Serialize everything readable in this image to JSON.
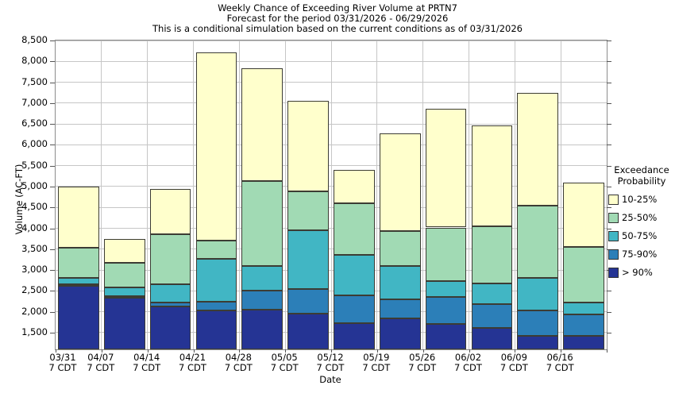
{
  "header": {
    "title": "Weekly Chance of Exceeding River Volume at PRTN7",
    "subtitle": "Forecast for the period 03/31/2026 - 06/29/2026",
    "condition_note": "This is a conditional simulation based on the current conditions as of 03/31/2026"
  },
  "chart_data": {
    "type": "bar",
    "stacked": true,
    "title": "Weekly Chance of Exceeding River Volume at PRTN7",
    "subtitle": "Forecast for the period 03/31/2026 - 06/29/2026",
    "annotation": "This is a conditional simulation based on the current conditions as of 03/31/2026",
    "xlabel": "Date",
    "ylabel": "Volume (AC-FT)",
    "ylim": [
      1100,
      8500
    ],
    "yticks": [
      1500,
      2000,
      2500,
      3000,
      3500,
      4000,
      4500,
      5000,
      5500,
      6000,
      6500,
      7000,
      7500,
      8000,
      8500
    ],
    "grid": true,
    "legend_position": "right",
    "categories": [
      "03/31",
      "04/07",
      "04/14",
      "04/21",
      "04/28",
      "05/05",
      "05/12",
      "05/19",
      "05/26",
      "06/02",
      "06/09",
      "06/16"
    ],
    "category_sublabel": "7 CDT",
    "series": [
      {
        "name": "> 90%",
        "color": "#253494",
        "cumulative_tops": [
          2630,
          2340,
          2130,
          2040,
          2050,
          1950,
          1730,
          1840,
          1700,
          1620,
          1430,
          1420
        ]
      },
      {
        "name": "75-90%",
        "color": "#2c7fb8",
        "cumulative_tops": [
          2660,
          2380,
          2230,
          2240,
          2500,
          2540,
          2400,
          2300,
          2350,
          2190,
          2030,
          1940
        ]
      },
      {
        "name": "50-75%",
        "color": "#41b6c4",
        "cumulative_tops": [
          2820,
          2580,
          2660,
          3270,
          3100,
          3950,
          3370,
          3090,
          2740,
          2670,
          2820,
          2230
        ]
      },
      {
        "name": "25-50%",
        "color": "#a1dab4",
        "cumulative_tops": [
          3530,
          3170,
          3860,
          3700,
          5130,
          4890,
          4600,
          3930,
          4020,
          4050,
          4550,
          3560
        ]
      },
      {
        "name": "10-25%",
        "color": "#ffffcc",
        "cumulative_tops": [
          5000,
          3750,
          4950,
          8210,
          7840,
          7060,
          5390,
          6270,
          6860,
          6460,
          7240,
          5100
        ]
      }
    ]
  },
  "legend": {
    "title_line1": "Exceedance",
    "title_line2": "Probability",
    "items": [
      {
        "label": "10-25%",
        "color": "#ffffcc"
      },
      {
        "label": "25-50%",
        "color": "#a1dab4"
      },
      {
        "label": "50-75%",
        "color": "#41b6c4"
      },
      {
        "label": "75-90%",
        "color": "#2c7fb8"
      },
      {
        "label": "> 90%",
        "color": "#253494"
      }
    ]
  },
  "colors": {
    "background": "#ffffff",
    "grid": "#c6c6c6",
    "plot_border": "#8c8c8c",
    "segment_border": "#3c3c34",
    "text": "#000000"
  }
}
